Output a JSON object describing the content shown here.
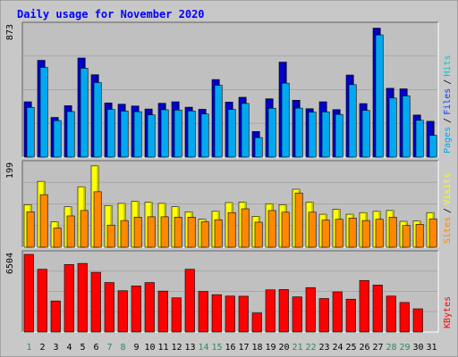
{
  "chart_data": {
    "type": "bar",
    "title": "Daily usage for November 2020",
    "days": [
      "1",
      "2",
      "3",
      "4",
      "5",
      "6",
      "7",
      "8",
      "9",
      "10",
      "11",
      "12",
      "13",
      "14",
      "15",
      "16",
      "17",
      "18",
      "19",
      "20",
      "21",
      "22",
      "23",
      "24",
      "25",
      "26",
      "27",
      "28",
      "29",
      "30",
      "31"
    ],
    "weekend_days": [
      "1",
      "7",
      "8",
      "14",
      "15",
      "21",
      "22",
      "28",
      "29"
    ],
    "panels": [
      {
        "id": "hits_files_pages",
        "ymax_label": "873",
        "ymax": 873,
        "legend": [
          "Pages",
          "Files",
          "Hits"
        ],
        "series": [
          {
            "name": "Hits",
            "values": [
              368,
              644,
              264,
              342,
              659,
              548,
              360,
              352,
              340,
              320,
              358,
              368,
              332,
              318,
              516,
              366,
              398,
              170,
              388,
              632,
              378,
              322,
              368,
              316,
              546,
              356,
              858,
              458,
              454,
              280,
              238
            ]
          },
          {
            "name": "Files",
            "values": [
              331,
              597,
              243,
              303,
              591,
              496,
              317,
              306,
              302,
              281,
              315,
              313,
              307,
              287,
              478,
              317,
              357,
              130,
              325,
              492,
              326,
              299,
              301,
              284,
              482,
              311,
              813,
              393,
              407,
              245,
              145
            ]
          },
          {
            "name": "Pages",
            "values": [
              0,
              0,
              0,
              0,
              0,
              0,
              0,
              0,
              0,
              0,
              0,
              0,
              0,
              0,
              0,
              0,
              0,
              0,
              0,
              0,
              0,
              0,
              0,
              0,
              0,
              0,
              0,
              0,
              0,
              0,
              0
            ]
          }
        ]
      },
      {
        "id": "visits_sites",
        "ymax_label": "199",
        "ymax": 199,
        "legend": [
          "Sites",
          "Visits"
        ],
        "series": [
          {
            "name": "Visits",
            "values": [
              102,
              158,
              61,
              97,
              145,
              195,
              100,
              105,
              110,
              108,
              105,
              97,
              85,
              67,
              86,
              107,
              108,
              74,
              104,
              102,
              139,
              108,
              79,
              91,
              79,
              83,
              86,
              88,
              62,
              63,
              83
            ]
          },
          {
            "name": "Sites",
            "values": [
              85,
              126,
              46,
              75,
              88,
              133,
              53,
              64,
              72,
              73,
              73,
              72,
              72,
              61,
              66,
              83,
              92,
              60,
              88,
              84,
              130,
              84,
              65,
              67,
              70,
              64,
              67,
              72,
              52,
              55,
              68
            ]
          }
        ]
      },
      {
        "id": "kbytes",
        "ymax_label": "6504",
        "ymax": 6504,
        "legend": [
          "KBytes"
        ],
        "series": [
          {
            "name": "KBytes",
            "values": [
              6504,
              5258,
              2602,
              5653,
              5747,
              5002,
              4144,
              3458,
              3865,
              4145,
              3429,
              2863,
              5258,
              3400,
              3129,
              3011,
              2998,
              1601,
              3534,
              3562,
              2943,
              3719,
              2805,
              3364,
              2750,
              4317,
              3931,
              3011,
              2476,
              1943,
              0
            ]
          }
        ]
      }
    ],
    "colors": {
      "hits": "#00a8f0",
      "hits_dark": "#0000d0",
      "files": "#0040ff",
      "pages": "#00c8c8",
      "visits": "#ffff00",
      "sites": "#ff8800",
      "kbytes": "#ff0000",
      "title": "#0000ff",
      "panel_bg": "#c0c0c0",
      "frame_bg": "#c8c8c8",
      "weekday_label": "#0000b0",
      "weekend_label": "#2e8b57"
    }
  }
}
